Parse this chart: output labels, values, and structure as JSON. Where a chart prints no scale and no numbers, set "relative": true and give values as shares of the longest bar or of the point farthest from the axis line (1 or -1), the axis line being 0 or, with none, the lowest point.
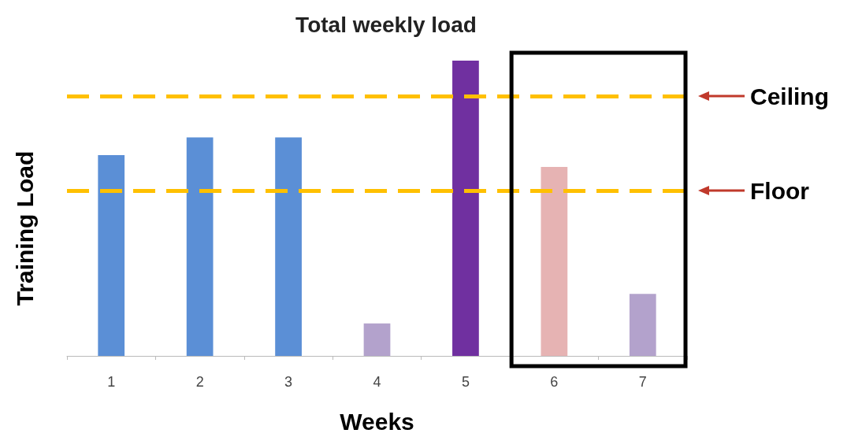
{
  "chart_data": {
    "type": "bar",
    "title": "Total weekly load",
    "xlabel": "Weeks",
    "ylabel": "Training Load",
    "relative": true,
    "categories": [
      "1",
      "2",
      "3",
      "4",
      "5",
      "6",
      "7"
    ],
    "values": [
      0.68,
      0.74,
      0.74,
      0.11,
      1,
      0.64,
      0.21
    ],
    "colors": [
      "#5b8fd6",
      "#5b8fd6",
      "#5b8fd6",
      "#b3a2cc",
      "#7030a0",
      "#e6b3b3",
      "#b3a2cc"
    ],
    "ref_lines": [
      {
        "axis": "y",
        "value": 0.88,
        "label": "Ceiling",
        "color": "#ffc000",
        "line_style": "dashed"
      },
      {
        "axis": "y",
        "value": 0.56,
        "label": "Floor",
        "color": "#ffc000",
        "line_style": "dashed"
      }
    ],
    "grid": false
  }
}
